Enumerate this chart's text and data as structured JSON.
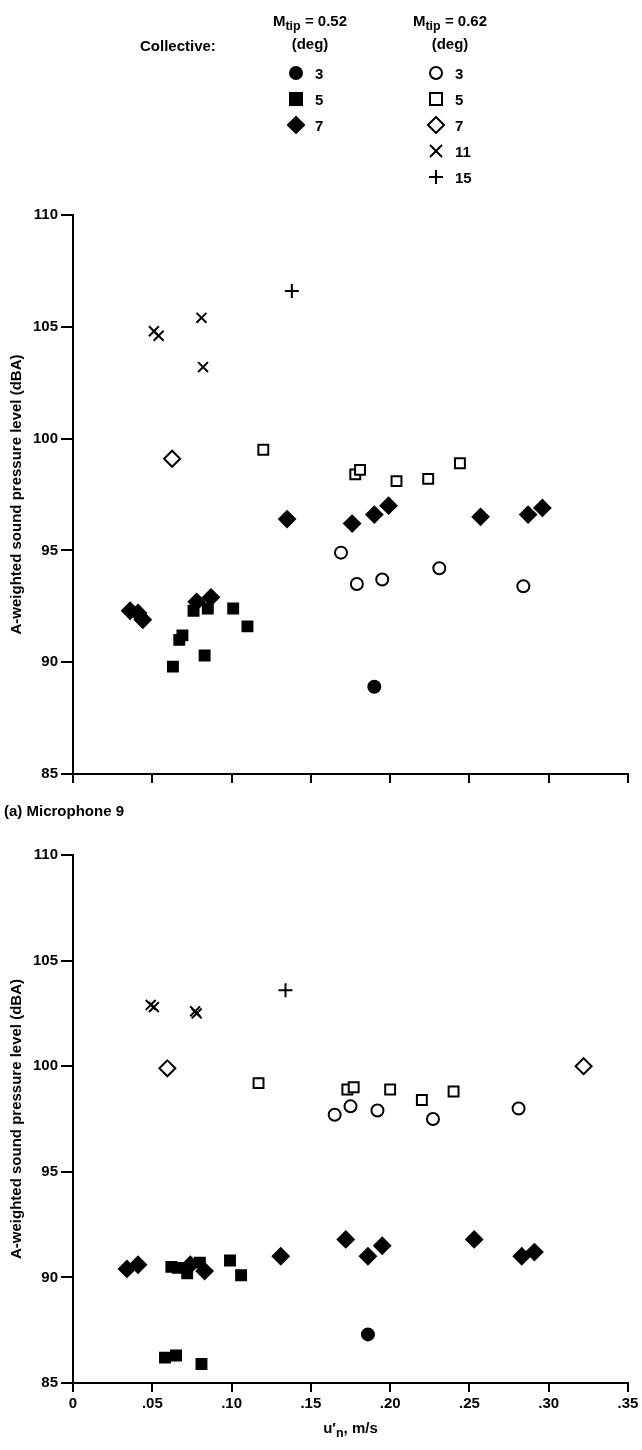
{
  "chart_data": [
    {
      "type": "scatter",
      "title": "(a) Microphone 9",
      "ylabel": "A-weighted sound pressure level (dBA)",
      "legend": "top",
      "legend_title": "Collective:",
      "annotations": [
        "M$_{tip}$ = 0.52\n(deg)",
        "M$_{tip}$ = 0.62\n(deg)"
      ],
      "xlim": [
        0,
        0.35
      ],
      "xticks": [
        {
          "value": 0,
          "label": null
        },
        {
          "value": 0.05,
          "label": null
        },
        {
          "value": 0.1,
          "label": null
        },
        {
          "value": 0.15,
          "label": null
        },
        {
          "value": 0.2,
          "label": null
        },
        {
          "value": 0.25,
          "label": null
        },
        {
          "value": 0.3,
          "label": null
        },
        {
          "value": 0.35,
          "label": null
        }
      ],
      "ylim": [
        85,
        110
      ],
      "yticks": [
        85,
        90,
        95,
        100,
        105,
        110
      ],
      "tick_labels": "y",
      "series": [
        {
          "name": "3",
          "color": "#000000",
          "marker": "circle",
          "x": [
            0.19
          ],
          "values": [
            88.9
          ]
        },
        {
          "name": "5",
          "color": "#000000",
          "marker": "square",
          "x": [
            0.063,
            0.067,
            0.069,
            0.076,
            0.083,
            0.085,
            0.101,
            0.11
          ],
          "values": [
            89.8,
            91.0,
            91.2,
            92.3,
            90.3,
            92.4,
            92.4,
            91.6
          ]
        },
        {
          "name": "7",
          "color": "#000000",
          "marker": "diamond",
          "x": [
            0.036,
            0.041,
            0.044,
            0.078,
            0.079,
            0.087,
            0.135,
            0.176,
            0.19,
            0.199,
            0.257,
            0.287,
            0.296
          ],
          "values": [
            92.3,
            92.2,
            91.9,
            92.7,
            null,
            92.9,
            96.4,
            96.2,
            96.6,
            97.0,
            96.5,
            96.6,
            96.9
          ]
        },
        {
          "name": "3",
          "color": "#000000",
          "marker": "circle-open",
          "x": [
            0.169,
            0.179,
            0.195,
            0.231,
            0.284
          ],
          "values": [
            94.9,
            93.5,
            93.7,
            94.2,
            93.4
          ]
        },
        {
          "name": "5",
          "color": "#000000",
          "marker": "square-open",
          "x": [
            0.12,
            0.178,
            0.181,
            0.204,
            0.224,
            0.244
          ],
          "values": [
            99.5,
            98.4,
            98.6,
            98.1,
            98.2,
            98.9
          ]
        },
        {
          "name": "7",
          "color": "#000000",
          "marker": "diamond-open",
          "x": [
            0.0625
          ],
          "values": [
            99.1
          ]
        },
        {
          "name": "11",
          "color": "#000000",
          "marker": "x",
          "x": [
            0.051,
            0.054,
            0.081,
            0.082
          ],
          "values": [
            104.8,
            104.6,
            105.4,
            103.2
          ]
        },
        {
          "name": "15",
          "color": "#000000",
          "marker": "cross",
          "x": [
            0.138
          ],
          "values": [
            106.6
          ]
        }
      ]
    },
    {
      "type": "scatter",
      "xlabel": "u′$_{n}$, m/s",
      "ylabel": "A-weighted sound pressure level (dBA)",
      "xlim": [
        0,
        0.35
      ],
      "xticks": [
        {
          "value": 0,
          "label": "0"
        },
        {
          "value": 0.05,
          "label": ".05"
        },
        {
          "value": 0.1,
          "label": ".10"
        },
        {
          "value": 0.15,
          "label": ".15"
        },
        {
          "value": 0.2,
          "label": ".20"
        },
        {
          "value": 0.25,
          "label": ".25"
        },
        {
          "value": 0.3,
          "label": ".30"
        },
        {
          "value": 0.35,
          "label": ".35"
        }
      ],
      "ylim": [
        85,
        110
      ],
      "yticks": [
        85,
        90,
        95,
        100,
        105,
        110
      ],
      "series": [
        {
          "color": "#000000",
          "marker": "circle",
          "x": [
            0.186
          ],
          "values": [
            87.3
          ]
        },
        {
          "color": "#000000",
          "marker": "square",
          "x": [
            0.058,
            0.062,
            0.065,
            0.066,
            0.072,
            0.08,
            0.081,
            0.099,
            0.106
          ],
          "values": [
            86.2,
            90.5,
            86.3,
            90.45,
            90.2,
            90.7,
            85.9,
            90.8,
            90.1
          ]
        },
        {
          "color": "#000000",
          "marker": "diamond",
          "x": [
            0.034,
            0.041,
            0.074,
            0.083,
            0.131,
            0.172,
            0.186,
            0.195,
            0.253,
            0.283,
            0.291
          ],
          "values": [
            90.4,
            90.6,
            90.6,
            90.3,
            91.0,
            91.8,
            91.0,
            91.5,
            91.8,
            91.0,
            91.2
          ]
        },
        {
          "color": "#000000",
          "marker": "circle-open",
          "x": [
            0.165,
            0.175,
            0.192,
            0.227,
            0.281
          ],
          "values": [
            97.7,
            98.1,
            97.9,
            97.5,
            98.0
          ]
        },
        {
          "color": "#000000",
          "marker": "square-open",
          "x": [
            0.117,
            0.173,
            0.177,
            0.2,
            0.22,
            0.24
          ],
          "values": [
            99.2,
            98.9,
            99.0,
            98.9,
            98.4,
            98.8
          ]
        },
        {
          "color": "#000000",
          "marker": "diamond-open",
          "x": [
            0.0595,
            0.322
          ],
          "values": [
            99.9,
            100.0
          ]
        },
        {
          "color": "#000000",
          "marker": "x",
          "x": [
            0.049,
            0.051,
            0.077,
            0.078
          ],
          "values": [
            102.9,
            102.8,
            102.6,
            102.5
          ]
        },
        {
          "color": "#000000",
          "marker": "cross",
          "x": [
            0.134
          ],
          "values": [
            103.6
          ]
        }
      ]
    }
  ]
}
